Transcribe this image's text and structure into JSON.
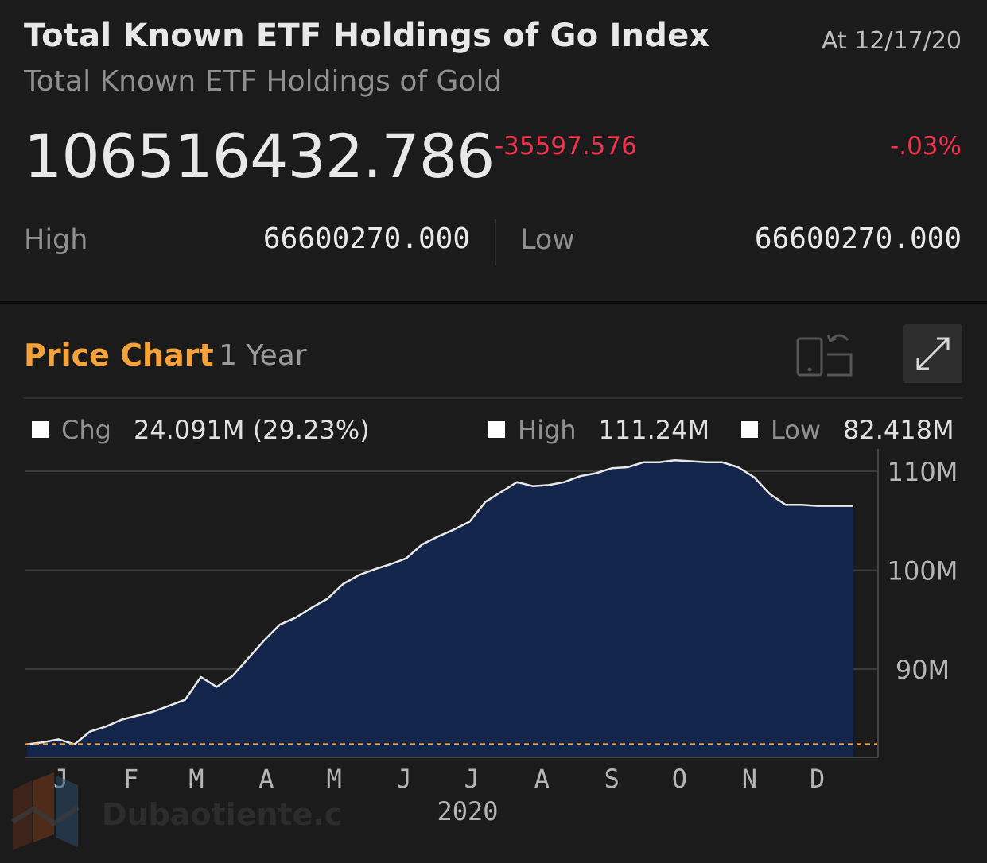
{
  "header": {
    "title": "Total Known ETF Holdings of Go Index",
    "subtitle": "Total Known ETF Holdings of Gold",
    "as_of": "At 12/17/20"
  },
  "quote": {
    "price": "106516432.786",
    "change": "-35597.576",
    "change_pct": "-.03%",
    "high_label": "High",
    "high_value": "66600270.000",
    "low_label": "Low",
    "low_value": "66600270.000"
  },
  "chart_section": {
    "heading": "Price Chart",
    "range": "1 Year"
  },
  "legend": {
    "chg_label": "Chg",
    "chg_value": "24.091M (29.23%)",
    "high_label": "High",
    "high_value": "111.24M",
    "low_label": "Low",
    "low_value": "82.418M"
  },
  "watermark": {
    "text": "Dubaotiente.com"
  },
  "colors": {
    "accent": "#f5a23a",
    "negative": "#f0334f",
    "area_fill": "#13254a",
    "line": "#e8e8e8",
    "baseline": "#f5a23a"
  },
  "chart_data": {
    "type": "area",
    "title": "",
    "xlabel": "2020",
    "ylabel": "",
    "x_tick_labels": [
      "J",
      "F",
      "M",
      "A",
      "M",
      "J",
      "J",
      "A",
      "S",
      "O",
      "N",
      "D"
    ],
    "y_tick_labels": [
      "110M",
      "100M",
      "90M"
    ],
    "y_ticks": [
      110,
      100,
      90
    ],
    "ylim": [
      81,
      111.5
    ],
    "y_unit": "M",
    "grid": true,
    "baseline_value": 82.418,
    "x": [
      "2019-12-17",
      "2019-12-24",
      "2019-12-31",
      "2020-01-07",
      "2020-01-14",
      "2020-01-21",
      "2020-01-28",
      "2020-02-04",
      "2020-02-11",
      "2020-02-18",
      "2020-02-25",
      "2020-03-03",
      "2020-03-10",
      "2020-03-17",
      "2020-03-24",
      "2020-03-31",
      "2020-04-07",
      "2020-04-14",
      "2020-04-21",
      "2020-04-28",
      "2020-05-05",
      "2020-05-12",
      "2020-05-19",
      "2020-05-26",
      "2020-06-02",
      "2020-06-09",
      "2020-06-16",
      "2020-06-23",
      "2020-06-30",
      "2020-07-07",
      "2020-07-14",
      "2020-07-21",
      "2020-07-28",
      "2020-08-04",
      "2020-08-11",
      "2020-08-18",
      "2020-08-25",
      "2020-09-01",
      "2020-09-08",
      "2020-09-15",
      "2020-09-22",
      "2020-09-29",
      "2020-10-06",
      "2020-10-13",
      "2020-10-20",
      "2020-10-27",
      "2020-11-03",
      "2020-11-10",
      "2020-11-17",
      "2020-11-24",
      "2020-12-01",
      "2020-12-08",
      "2020-12-17"
    ],
    "values": [
      82.4,
      82.6,
      82.9,
      82.4,
      83.7,
      84.2,
      84.9,
      85.3,
      85.7,
      86.3,
      86.9,
      89.2,
      88.2,
      89.3,
      91.1,
      92.9,
      94.5,
      95.2,
      96.2,
      97.1,
      98.6,
      99.5,
      100.1,
      100.6,
      101.2,
      102.6,
      103.4,
      104.1,
      104.9,
      106.9,
      107.9,
      108.9,
      108.5,
      108.6,
      108.9,
      109.5,
      109.8,
      110.3,
      110.4,
      110.9,
      110.9,
      111.1,
      111.0,
      110.9,
      110.9,
      110.4,
      109.4,
      107.7,
      106.6,
      106.6,
      106.5,
      106.5,
      106.5
    ]
  }
}
